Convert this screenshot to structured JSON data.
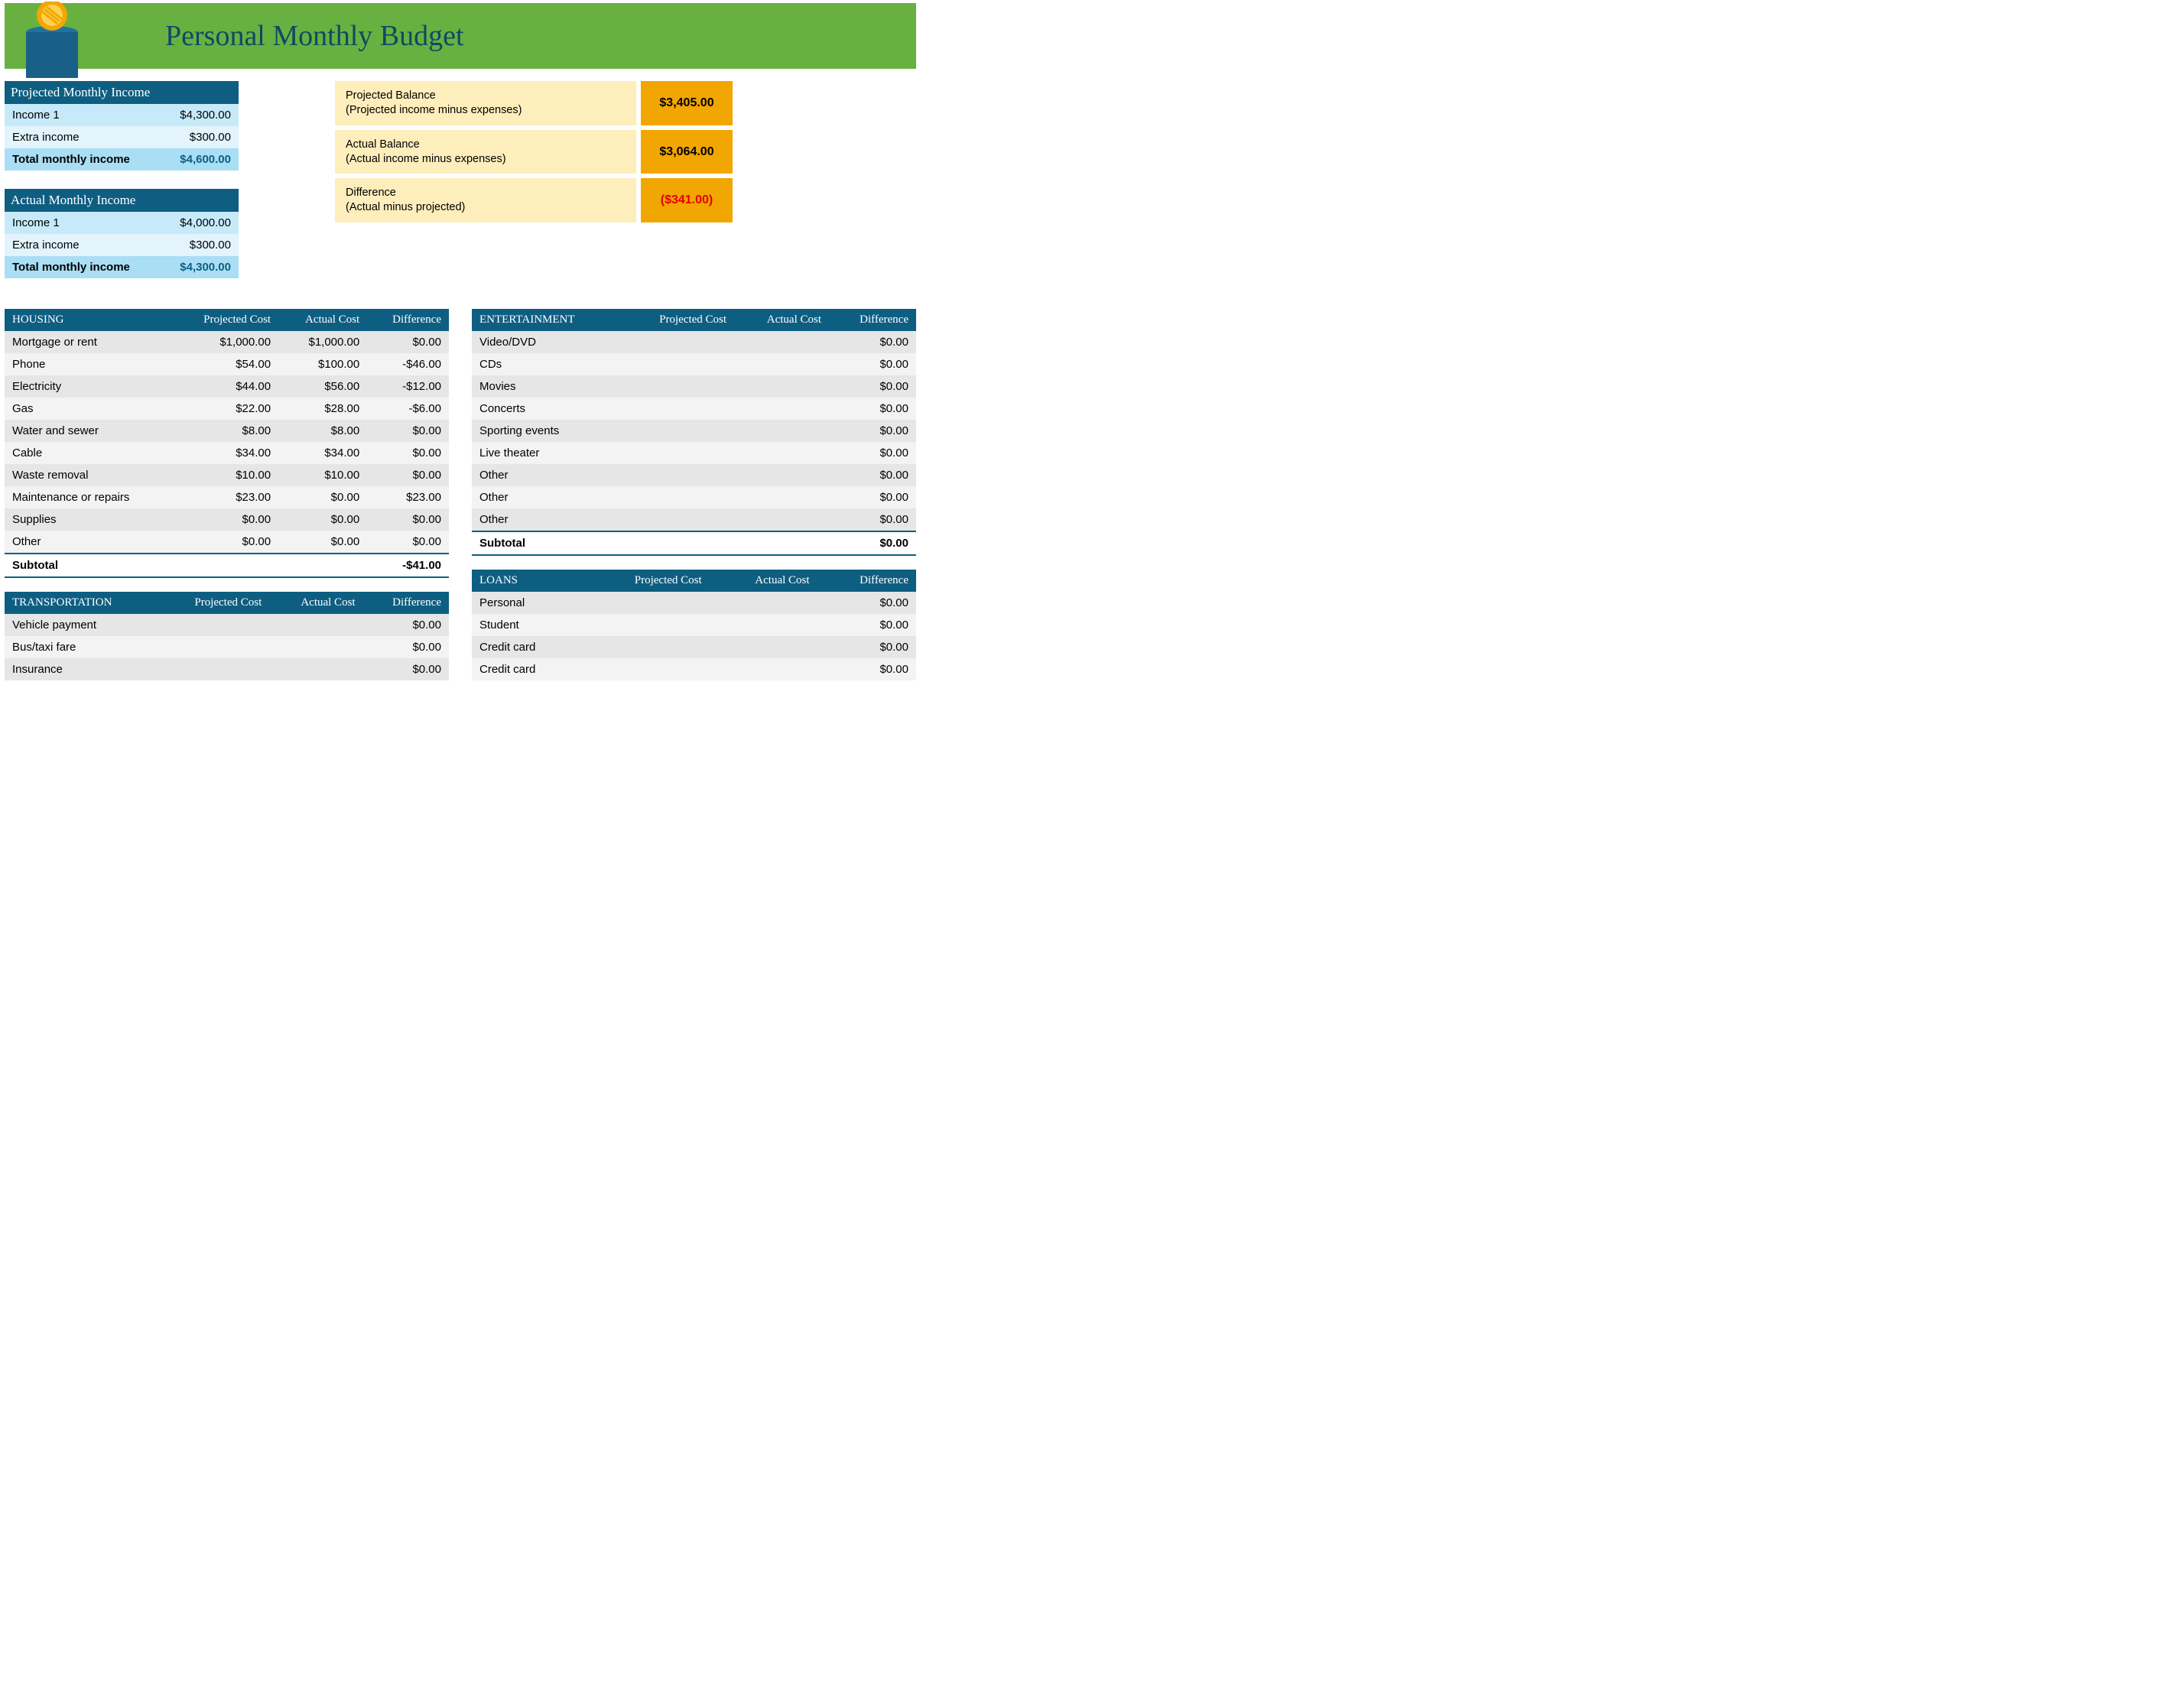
{
  "title": "Personal Monthly Budget",
  "colors": {
    "banner_bg": "#68b141",
    "title_text": "#0e4a63",
    "header_bg": "#0e5e82",
    "income_light": "#c6eaf9",
    "income_lighter": "#e3f4fc",
    "income_total_bg": "#a9def5",
    "balance_label_bg": "#fdeebc",
    "balance_value_bg": "#f2a601",
    "row_odd": "#e6e6e6",
    "row_even": "#f3f3f3",
    "negative": "#e30000"
  },
  "projected_income": {
    "header": "Projected Monthly Income",
    "rows": [
      {
        "label": "Income 1",
        "value": "$4,300.00"
      },
      {
        "label": "Extra income",
        "value": "$300.00"
      }
    ],
    "total_label": "Total monthly income",
    "total_value": "$4,600.00"
  },
  "actual_income": {
    "header": "Actual Monthly Income",
    "rows": [
      {
        "label": "Income 1",
        "value": "$4,000.00"
      },
      {
        "label": "Extra income",
        "value": "$300.00"
      }
    ],
    "total_label": "Total monthly income",
    "total_value": "$4,300.00"
  },
  "balances": [
    {
      "title": "Projected Balance",
      "sub": "(Projected income minus expenses)",
      "value": "$3,405.00",
      "neg": false
    },
    {
      "title": "Actual Balance",
      "sub": "(Actual income minus expenses)",
      "value": "$3,064.00",
      "neg": false
    },
    {
      "title": "Difference",
      "sub": "(Actual minus projected)",
      "value": "($341.00)",
      "neg": true
    }
  ],
  "cols": {
    "projected": "Projected Cost",
    "actual": "Actual Cost",
    "diff": "Difference",
    "subtotal": "Subtotal"
  },
  "left_categories": [
    {
      "name": "HOUSING",
      "rows": [
        {
          "label": "Mortgage or rent",
          "projected": "$1,000.00",
          "actual": "$1,000.00",
          "diff": "$0.00"
        },
        {
          "label": "Phone",
          "projected": "$54.00",
          "actual": "$100.00",
          "diff": "-$46.00"
        },
        {
          "label": "Electricity",
          "projected": "$44.00",
          "actual": "$56.00",
          "diff": "-$12.00"
        },
        {
          "label": "Gas",
          "projected": "$22.00",
          "actual": "$28.00",
          "diff": "-$6.00"
        },
        {
          "label": "Water and sewer",
          "projected": "$8.00",
          "actual": "$8.00",
          "diff": "$0.00"
        },
        {
          "label": "Cable",
          "projected": "$34.00",
          "actual": "$34.00",
          "diff": "$0.00"
        },
        {
          "label": "Waste removal",
          "projected": "$10.00",
          "actual": "$10.00",
          "diff": "$0.00"
        },
        {
          "label": "Maintenance or repairs",
          "projected": "$23.00",
          "actual": "$0.00",
          "diff": "$23.00"
        },
        {
          "label": "Supplies",
          "projected": "$0.00",
          "actual": "$0.00",
          "diff": "$0.00"
        },
        {
          "label": "Other",
          "projected": "$0.00",
          "actual": "$0.00",
          "diff": "$0.00"
        }
      ],
      "subtotal": "-$41.00"
    },
    {
      "name": "TRANSPORTATION",
      "rows": [
        {
          "label": "Vehicle payment",
          "projected": "",
          "actual": "",
          "diff": "$0.00"
        },
        {
          "label": "Bus/taxi fare",
          "projected": "",
          "actual": "",
          "diff": "$0.00"
        },
        {
          "label": "Insurance",
          "projected": "",
          "actual": "",
          "diff": "$0.00"
        }
      ],
      "subtotal": null
    }
  ],
  "right_categories": [
    {
      "name": "ENTERTAINMENT",
      "rows": [
        {
          "label": "Video/DVD",
          "projected": "",
          "actual": "",
          "diff": "$0.00"
        },
        {
          "label": "CDs",
          "projected": "",
          "actual": "",
          "diff": "$0.00"
        },
        {
          "label": "Movies",
          "projected": "",
          "actual": "",
          "diff": "$0.00"
        },
        {
          "label": "Concerts",
          "projected": "",
          "actual": "",
          "diff": "$0.00"
        },
        {
          "label": "Sporting events",
          "projected": "",
          "actual": "",
          "diff": "$0.00"
        },
        {
          "label": "Live theater",
          "projected": "",
          "actual": "",
          "diff": "$0.00"
        },
        {
          "label": "Other",
          "projected": "",
          "actual": "",
          "diff": "$0.00"
        },
        {
          "label": "Other",
          "projected": "",
          "actual": "",
          "diff": "$0.00"
        },
        {
          "label": "Other",
          "projected": "",
          "actual": "",
          "diff": "$0.00"
        }
      ],
      "subtotal": "$0.00"
    },
    {
      "name": "LOANS",
      "rows": [
        {
          "label": "Personal",
          "projected": "",
          "actual": "",
          "diff": "$0.00"
        },
        {
          "label": "Student",
          "projected": "",
          "actual": "",
          "diff": "$0.00"
        },
        {
          "label": "Credit card",
          "projected": "",
          "actual": "",
          "diff": "$0.00"
        },
        {
          "label": "Credit card",
          "projected": "",
          "actual": "",
          "diff": "$0.00"
        }
      ],
      "subtotal": null
    }
  ]
}
